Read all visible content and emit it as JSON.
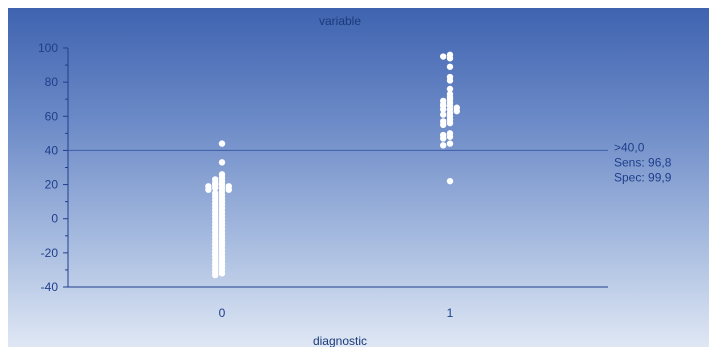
{
  "chart_data": {
    "type": "scatter",
    "subtype": "dot-plot (beeswarm)",
    "title": "variable",
    "xlabel": "diagnostic",
    "ylabel": "",
    "categories": [
      "0",
      "1"
    ],
    "ylim": [
      -40,
      100
    ],
    "yticks": [
      -40,
      -20,
      0,
      20,
      40,
      60,
      80,
      100
    ],
    "series": [
      {
        "category": "0",
        "values": [
          44,
          33,
          26,
          24,
          23,
          22,
          21,
          20,
          20,
          19,
          19,
          18,
          18,
          17,
          17,
          16,
          15,
          14,
          13,
          12,
          11,
          10,
          9,
          8,
          7,
          6,
          5,
          4,
          3,
          2,
          1,
          0,
          -1,
          -2,
          -3,
          -4,
          -5,
          -6,
          -7,
          -8,
          -9,
          -10,
          -11,
          -12,
          -13,
          -14,
          -15,
          -16,
          -17,
          -18,
          -19,
          -20,
          -21,
          -22,
          -23,
          -24,
          -25,
          -26,
          -27,
          -28,
          -29,
          -30,
          -31,
          -32,
          -33
        ]
      },
      {
        "category": "1",
        "values": [
          96,
          95,
          94,
          89,
          83,
          81,
          76,
          73,
          71,
          70,
          69,
          68,
          67,
          66,
          66,
          65,
          64,
          64,
          63,
          62,
          61,
          60,
          58,
          57,
          56,
          55,
          50,
          49,
          48,
          47,
          44,
          43,
          22
        ]
      }
    ],
    "reference_line": {
      "y": 40,
      "labels": [
        ">40,0",
        "Sens: 96,8",
        "Spec: 99,9"
      ]
    },
    "colors": {
      "points": "#ffffff",
      "axis": "#1f3f8c",
      "reference_line": "#3a5ea8"
    },
    "grid": false
  }
}
